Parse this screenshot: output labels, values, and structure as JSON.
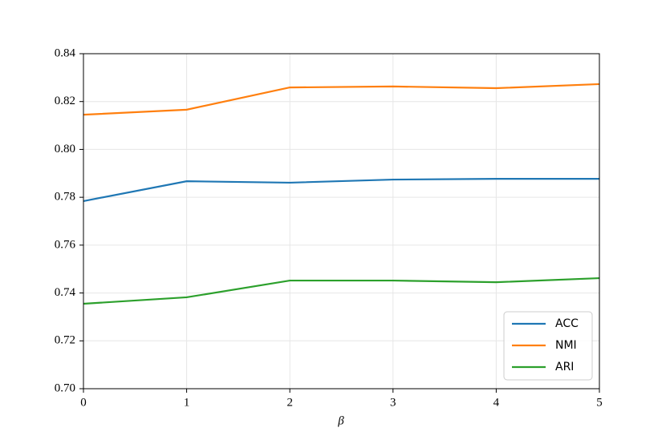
{
  "chart_data": {
    "type": "line",
    "x_label": "β",
    "x": [
      0,
      1,
      2,
      3,
      4,
      5
    ],
    "series": [
      {
        "name": "ACC",
        "color": "#1f77b4",
        "values": [
          0.7784,
          0.7867,
          0.7861,
          0.7874,
          0.7877,
          0.7877
        ]
      },
      {
        "name": "NMI",
        "color": "#ff7f0e",
        "values": [
          0.8145,
          0.8166,
          0.8259,
          0.8263,
          0.8256,
          0.8273
        ]
      },
      {
        "name": "ARI",
        "color": "#2ca02c",
        "values": [
          0.7355,
          0.7382,
          0.7452,
          0.7452,
          0.7445,
          0.7462
        ]
      }
    ],
    "xlim": [
      0,
      5
    ],
    "xticks": [
      0,
      1,
      2,
      3,
      4,
      5
    ],
    "ylim": [
      0.7,
      0.84
    ],
    "yticks": [
      {
        "value": 0.7,
        "label": "0.70"
      },
      0.72,
      0.74,
      0.76,
      0.78,
      {
        "value": 0.8,
        "label": "0.80"
      },
      0.82,
      0.84
    ],
    "grid": true,
    "legend": "lower right"
  }
}
